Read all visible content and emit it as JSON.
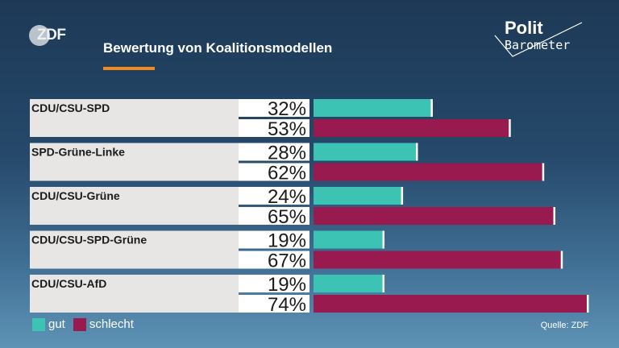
{
  "header": {
    "logo_text": "ZDF",
    "title": "Bewertung von Koalitionsmodellen",
    "brand_line1": "Polit",
    "brand_line2": "Barometer"
  },
  "colors": {
    "gut": "#3cc3b3",
    "schlecht": "#991a4e",
    "accent": "#f08a1c"
  },
  "chart_data": {
    "type": "bar",
    "orientation": "horizontal",
    "categories": [
      "CDU/CSU-SPD",
      "SPD-Grüne-Linke",
      "CDU/CSU-Grüne",
      "CDU/CSU-SPD-Grüne",
      "CDU/CSU-AfD"
    ],
    "series": [
      {
        "name": "gut",
        "values": [
          32,
          28,
          24,
          19,
          19
        ]
      },
      {
        "name": "schlecht",
        "values": [
          53,
          62,
          65,
          67,
          74
        ]
      }
    ],
    "unit": "%",
    "xlim": [
      0,
      80
    ],
    "legend": "bottom-left"
  },
  "legend": {
    "gut": "gut",
    "schlecht": "schlecht"
  },
  "source": "Quelle: ZDF"
}
